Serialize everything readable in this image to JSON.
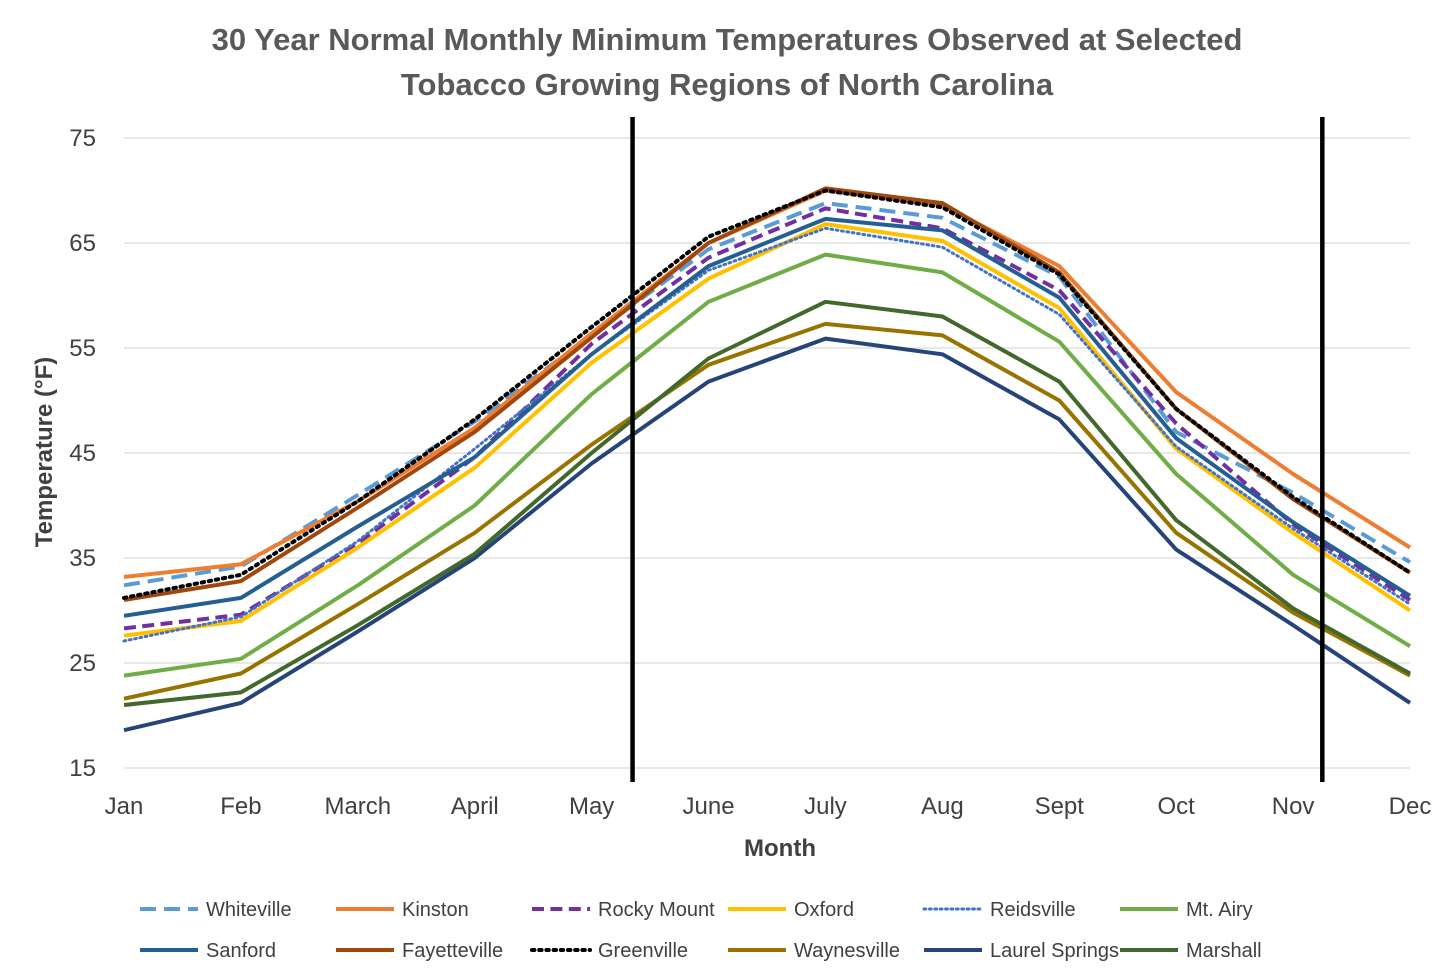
{
  "chart_data": {
    "type": "line",
    "title_line1": "30 Year Normal Monthly Minimum Temperatures Observed at Selected",
    "title_line2": "Tobacco Growing Regions of North Carolina",
    "xlabel": "Month",
    "ylabel": "Temperature (°F)",
    "ylim": [
      15,
      75
    ],
    "yticks": [
      15,
      25,
      35,
      45,
      55,
      65,
      75
    ],
    "categories": [
      "Jan",
      "Feb",
      "March",
      "April",
      "May",
      "June",
      "July",
      "Aug",
      "Sept",
      "Oct",
      "Nov",
      "Dec"
    ],
    "grid": true,
    "legend_position": "bottom",
    "reference_lines": [
      4.35,
      10.25
    ],
    "series": [
      {
        "name": "Whiteville",
        "color": "#5b9bd5",
        "dash": "long",
        "width": 4,
        "values": [
          32.4,
          34.2,
          41.0,
          48.0,
          56.2,
          64.4,
          68.8,
          67.4,
          61.8,
          47.0,
          41.2,
          34.6
        ]
      },
      {
        "name": "Kinston",
        "color": "#ed7d31",
        "dash": "solid",
        "width": 4,
        "values": [
          33.2,
          34.4,
          40.4,
          47.4,
          56.4,
          65.0,
          70.0,
          68.6,
          62.8,
          50.8,
          43.0,
          36.0
        ]
      },
      {
        "name": "Rocky Mount",
        "color": "#7030a0",
        "dash": "dash",
        "width": 4,
        "values": [
          28.3,
          29.6,
          36.4,
          44.6,
          55.4,
          63.6,
          68.3,
          66.4,
          60.5,
          47.8,
          38.2,
          31.0
        ]
      },
      {
        "name": "Oxford",
        "color": "#ffc000",
        "dash": "solid",
        "width": 4,
        "values": [
          27.6,
          29.0,
          36.0,
          43.6,
          53.6,
          61.6,
          66.8,
          65.2,
          58.8,
          45.4,
          37.4,
          30.0
        ]
      },
      {
        "name": "Reidsville",
        "color": "#4472c4",
        "dash": "dot",
        "width": 3,
        "values": [
          27.1,
          29.4,
          36.6,
          45.4,
          54.4,
          62.4,
          66.4,
          64.6,
          58.2,
          45.6,
          37.8,
          30.6
        ]
      },
      {
        "name": "Mt. Airy",
        "color": "#70ad47",
        "dash": "solid",
        "width": 4,
        "values": [
          23.8,
          25.4,
          32.4,
          40.0,
          50.6,
          59.4,
          63.9,
          62.2,
          55.6,
          43.0,
          33.4,
          26.6
        ]
      },
      {
        "name": "Sanford",
        "color": "#255e91",
        "dash": "solid",
        "width": 4,
        "values": [
          29.5,
          31.2,
          38.0,
          44.6,
          54.4,
          62.8,
          67.3,
          66.2,
          59.8,
          46.4,
          38.4,
          31.4
        ]
      },
      {
        "name": "Fayetteville",
        "color": "#9e480e",
        "dash": "solid",
        "width": 4,
        "values": [
          31.0,
          32.8,
          39.8,
          47.0,
          56.0,
          65.0,
          70.2,
          68.8,
          62.2,
          49.2,
          40.6,
          33.6
        ]
      },
      {
        "name": "Greenville",
        "color": "#000000",
        "dash": "dot",
        "width": 4,
        "values": [
          31.2,
          33.4,
          40.4,
          48.2,
          57.0,
          65.6,
          70.0,
          68.4,
          62.0,
          49.2,
          40.8,
          33.6
        ]
      },
      {
        "name": "Waynesville",
        "color": "#997300",
        "dash": "solid",
        "width": 4,
        "values": [
          21.6,
          24.0,
          30.6,
          37.4,
          45.8,
          53.4,
          57.3,
          56.2,
          50.0,
          37.4,
          29.8,
          23.8
        ]
      },
      {
        "name": "Laurel Springs",
        "color": "#264478",
        "dash": "solid",
        "width": 4,
        "values": [
          18.6,
          21.2,
          28.0,
          35.0,
          44.0,
          51.8,
          55.9,
          54.4,
          48.2,
          35.8,
          28.6,
          21.2
        ]
      },
      {
        "name": "Marshall",
        "color": "#43682b",
        "dash": "solid",
        "width": 4,
        "values": [
          21.0,
          22.2,
          28.6,
          35.4,
          45.0,
          54.0,
          59.4,
          58.0,
          51.8,
          38.6,
          30.2,
          24.0
        ]
      }
    ]
  }
}
